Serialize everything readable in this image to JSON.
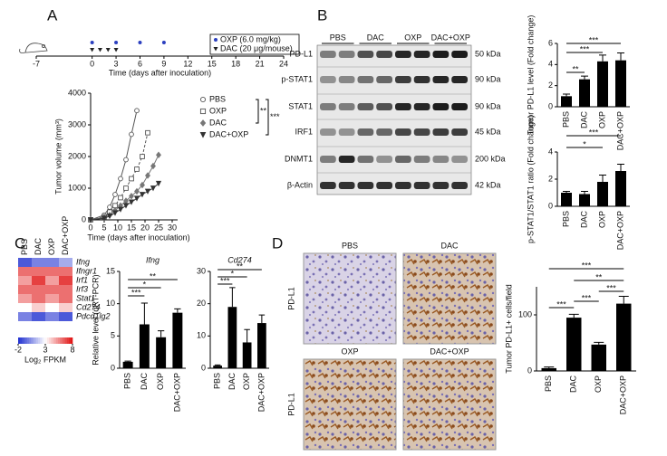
{
  "panel_labels": [
    "A",
    "B",
    "C",
    "D"
  ],
  "chart_data": [
    {
      "type": "timeline",
      "xlabel": "Time (days after inoculation)",
      "xlim": [
        -7,
        24
      ],
      "xticks": [
        -7,
        0,
        3,
        6,
        9,
        12,
        15,
        18,
        21,
        24
      ],
      "series": [
        {
          "name": "OXP (6.0 mg/kg)",
          "color": "#2b3fbf",
          "x": [
            0,
            3,
            6,
            9
          ]
        },
        {
          "name": "DAC (20 μg/mouse)",
          "color": "#222222",
          "x": [
            0,
            1,
            2,
            3
          ]
        }
      ]
    },
    {
      "type": "line",
      "xlabel": "Time (days after inoculation)",
      "ylabel": "Tumor volume (mm³)",
      "xlim": [
        0,
        32
      ],
      "xticks": [
        0,
        5,
        10,
        15,
        20,
        25,
        30
      ],
      "ylim": [
        0,
        4000
      ],
      "yticks": [
        0,
        1000,
        2000,
        3000,
        4000
      ],
      "series": [
        {
          "name": "PBS",
          "color": "#555555",
          "marker": "circle",
          "filled": false,
          "x": [
            0,
            5,
            7,
            9,
            11,
            13,
            15,
            17
          ],
          "values": [
            0,
            150,
            400,
            800,
            1300,
            1900,
            2700,
            3450
          ]
        },
        {
          "name": "OXP",
          "color": "#555555",
          "marker": "square",
          "filled": false,
          "x": [
            0,
            5,
            7,
            9,
            11,
            13,
            15,
            17,
            19,
            21
          ],
          "values": [
            0,
            100,
            250,
            450,
            700,
            1000,
            1300,
            1600,
            2000,
            2750
          ]
        },
        {
          "name": "DAC",
          "color": "#777777",
          "marker": "diamond",
          "filled": true,
          "x": [
            0,
            5,
            7,
            9,
            11,
            13,
            15,
            17,
            19,
            21,
            23,
            25
          ],
          "values": [
            0,
            80,
            150,
            300,
            450,
            600,
            750,
            900,
            1100,
            1400,
            1700,
            2050
          ]
        },
        {
          "name": "DAC+OXP",
          "color": "#333333",
          "marker": "triangle",
          "filled": true,
          "x": [
            0,
            5,
            7,
            9,
            11,
            13,
            15,
            17,
            19,
            21,
            23,
            25
          ],
          "values": [
            0,
            50,
            120,
            220,
            330,
            450,
            560,
            680,
            800,
            900,
            1000,
            1150
          ]
        }
      ],
      "significance": [
        "**",
        "***"
      ]
    },
    {
      "type": "bar",
      "ylabel": "Tumor PD-L1 level (Fold change)",
      "categories": [
        "PBS",
        "DAC",
        "OXP",
        "DAC+OXP"
      ],
      "values": [
        1,
        2.6,
        4.3,
        4.4
      ],
      "errors": [
        0.2,
        0.3,
        0.6,
        0.7
      ],
      "color": "#000000",
      "ylim": [
        0,
        6
      ],
      "yticks": [
        0,
        2,
        4,
        6
      ],
      "significance": [
        "**",
        "***",
        "***"
      ]
    },
    {
      "type": "bar",
      "ylabel": "p-STAT1/STAT1 ratio (Fold change)",
      "categories": [
        "PBS",
        "DAC",
        "OXP",
        "DAC+OXP"
      ],
      "values": [
        1,
        0.9,
        1.8,
        2.6
      ],
      "errors": [
        0.1,
        0.2,
        0.5,
        0.5
      ],
      "color": "#000000",
      "ylim": [
        0,
        4
      ],
      "yticks": [
        0,
        2,
        4
      ],
      "significance": [
        "*",
        "***"
      ]
    },
    {
      "type": "heatmap",
      "columns": [
        "PBS",
        "DAC",
        "OXP",
        "DAC+OXP"
      ],
      "rows": [
        "Ifng",
        "Ifngr1",
        "Irf1",
        "Irf3",
        "Stat1",
        "Cd274",
        "Pdcd1lg2"
      ],
      "values": [
        [
          -1,
          0,
          0,
          1
        ],
        [
          6,
          6,
          6,
          6
        ],
        [
          5,
          7,
          5,
          7
        ],
        [
          6,
          6,
          6,
          6
        ],
        [
          5,
          6,
          5,
          6
        ],
        [
          3,
          4,
          3,
          4
        ],
        [
          0,
          -1,
          0,
          -1
        ]
      ],
      "vlim": [
        -2,
        8
      ],
      "colorbar_ticks": [
        -2,
        3,
        8
      ],
      "colorbar_label": "Log₂ FPKM",
      "colors": [
        "#1f2fd0",
        "#ffffff",
        "#e01010"
      ]
    },
    {
      "type": "bar",
      "title": "Ifng",
      "ylabel": "Relative level (qRT-PCR)",
      "categories": [
        "PBS",
        "DAC",
        "OXP",
        "DAC+OXP"
      ],
      "values": [
        1,
        6.8,
        4.8,
        8.6
      ],
      "errors": [
        0.1,
        3.3,
        1,
        0.6
      ],
      "color": "#000000",
      "ylim": [
        0,
        15
      ],
      "yticks": [
        0,
        5,
        10,
        15
      ],
      "significance": [
        "***",
        "*",
        "**"
      ]
    },
    {
      "type": "bar",
      "title": "Cd274",
      "categories": [
        "PBS",
        "DAC",
        "OXP",
        "DAC+OXP"
      ],
      "values": [
        0.8,
        19,
        8,
        14
      ],
      "errors": [
        0.2,
        6,
        4,
        2.5
      ],
      "color": "#000000",
      "ylim": [
        0,
        30
      ],
      "yticks": [
        0,
        10,
        20,
        30
      ],
      "significance": [
        "***",
        "*",
        "**"
      ]
    },
    {
      "type": "bar",
      "ylabel": "Tumor PD-L1+ cells/field",
      "categories": [
        "PBS",
        "DAC",
        "OXP",
        "DAC+OXP"
      ],
      "values": [
        5,
        95,
        47,
        120
      ],
      "errors": [
        2,
        6,
        4,
        13
      ],
      "color": "#000000",
      "ylim": [
        0,
        150
      ],
      "yticks": [
        0,
        100
      ],
      "significance": [
        "***",
        "***",
        "***",
        "**",
        "***"
      ]
    }
  ],
  "blot": {
    "groups": [
      "PBS",
      "DAC",
      "OXP",
      "DAC+OXP"
    ],
    "proteins": [
      "PD-L1",
      "p-STAT1",
      "STAT1",
      "IRF1",
      "DNMT1",
      "β-Actin"
    ],
    "sizes": [
      "50 kDa",
      "90 kDa",
      "90 kDa",
      "45 kDa",
      "200 kDa",
      "42 kDa"
    ]
  },
  "ihc": {
    "panels": [
      "PBS",
      "DAC",
      "OXP",
      "DAC+OXP"
    ],
    "stain": "PD-L1"
  }
}
